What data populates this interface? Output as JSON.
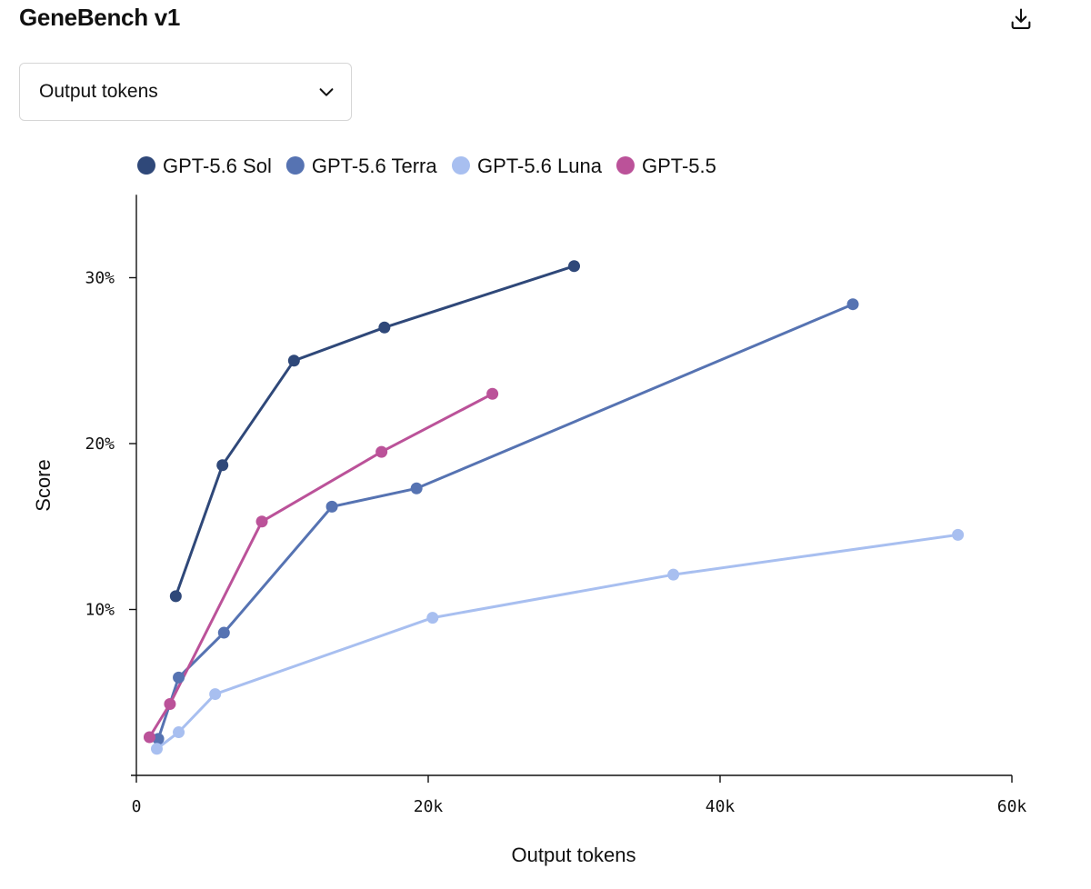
{
  "header": {
    "title": "GeneBench v1",
    "download_icon": "download-icon"
  },
  "metric_select": {
    "selected": "Output tokens",
    "icon": "chevron-down-icon"
  },
  "chart_data": {
    "type": "line",
    "title": "",
    "xlabel": "Output tokens",
    "ylabel": "Score",
    "xlim": [
      0,
      60000
    ],
    "ylim": [
      0,
      35
    ],
    "x_ticks": [
      {
        "value": 0,
        "label": "0"
      },
      {
        "value": 20000,
        "label": "20k"
      },
      {
        "value": 40000,
        "label": "40k"
      },
      {
        "value": 60000,
        "label": "60k"
      }
    ],
    "y_ticks": [
      {
        "value": 10,
        "label": "10%"
      },
      {
        "value": 20,
        "label": "20%"
      },
      {
        "value": 30,
        "label": "30%"
      }
    ],
    "grid": false,
    "legend_position": "top-left",
    "series": [
      {
        "name": "GPT-5.6 Sol",
        "color": "#2f4879",
        "points": [
          {
            "x": 2700,
            "y": 10.8
          },
          {
            "x": 5900,
            "y": 18.7
          },
          {
            "x": 10800,
            "y": 25.0
          },
          {
            "x": 17000,
            "y": 27.0
          },
          {
            "x": 30000,
            "y": 30.7
          }
        ]
      },
      {
        "name": "GPT-5.6 Terra",
        "color": "#5673b2",
        "points": [
          {
            "x": 1500,
            "y": 2.2
          },
          {
            "x": 2900,
            "y": 5.9
          },
          {
            "x": 6000,
            "y": 8.6
          },
          {
            "x": 13400,
            "y": 16.2
          },
          {
            "x": 19200,
            "y": 17.3
          },
          {
            "x": 49100,
            "y": 28.4
          }
        ]
      },
      {
        "name": "GPT-5.6 Luna",
        "color": "#a8bff0",
        "points": [
          {
            "x": 1400,
            "y": 1.6
          },
          {
            "x": 2900,
            "y": 2.6
          },
          {
            "x": 5400,
            "y": 4.9
          },
          {
            "x": 20300,
            "y": 9.5
          },
          {
            "x": 36800,
            "y": 12.1
          },
          {
            "x": 56300,
            "y": 14.5
          }
        ]
      },
      {
        "name": "GPT-5.5",
        "color": "#bb5299",
        "points": [
          {
            "x": 900,
            "y": 2.3
          },
          {
            "x": 2300,
            "y": 4.3
          },
          {
            "x": 8600,
            "y": 15.3
          },
          {
            "x": 16800,
            "y": 19.5
          },
          {
            "x": 24400,
            "y": 23.0
          }
        ]
      }
    ]
  }
}
